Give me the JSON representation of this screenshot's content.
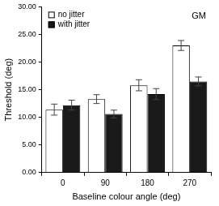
{
  "chart_data": {
    "type": "bar",
    "title": "GM",
    "x_label": "Baseline colour angle (deg)",
    "y_label": "Threshold (deg)",
    "categories": [
      "0",
      "90",
      "180",
      "270"
    ],
    "series": [
      {
        "name": "no jitter",
        "color": "#ffffff",
        "values": [
          11.4,
          13.3,
          15.8,
          23.0
        ],
        "errors": [
          1.0,
          0.8,
          1.0,
          0.9
        ]
      },
      {
        "name": "with jitter",
        "color": "#1a1a1a",
        "values": [
          12.2,
          10.6,
          14.2,
          16.5
        ],
        "errors": [
          0.9,
          0.7,
          1.0,
          0.8
        ]
      }
    ],
    "ylim": [
      0,
      30
    ],
    "yticks": [
      {
        "value": 0,
        "label": "0.00"
      },
      {
        "value": 5,
        "label": "5.00"
      },
      {
        "value": 10,
        "label": "10.00"
      },
      {
        "value": 15,
        "label": "15.00"
      },
      {
        "value": 20,
        "label": "20.00"
      },
      {
        "value": 25,
        "label": "25.00"
      },
      {
        "value": 30,
        "label": "30.00"
      }
    ],
    "grid": false,
    "legend": "upper left"
  }
}
